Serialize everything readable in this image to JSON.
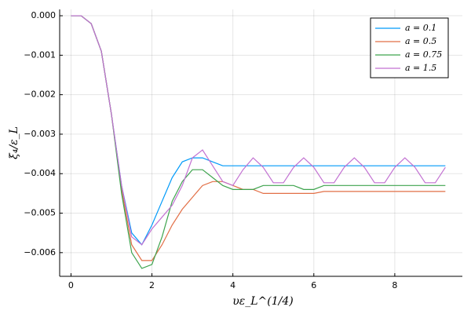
{
  "chart_data": {
    "type": "line",
    "xlabel": "υε_L^(1/4)",
    "ylabel": "ξ₄/ε_L",
    "x": [
      0,
      0.25,
      0.5,
      0.75,
      1,
      1.25,
      1.5,
      1.75,
      2,
      2.25,
      2.5,
      2.75,
      3,
      3.25,
      3.5,
      3.75,
      4,
      4.25,
      4.5,
      4.75,
      5,
      5.25,
      5.5,
      5.75,
      6,
      6.25,
      6.5,
      6.75,
      7,
      7.25,
      7.5,
      7.75,
      8,
      8.25,
      8.5,
      8.75,
      9,
      9.25
    ],
    "series": [
      {
        "name": "a = 0.1",
        "color": "#009af9",
        "values": [
          0,
          0,
          -0.0002,
          -0.0009,
          -0.0025,
          -0.0043,
          -0.0055,
          -0.0058,
          -0.0053,
          -0.0047,
          -0.0041,
          -0.0037,
          -0.0036,
          -0.0036,
          -0.0037,
          -0.0038,
          -0.0038,
          -0.0038,
          -0.0038,
          -0.0038,
          -0.0038,
          -0.0038,
          -0.0038,
          -0.0038,
          -0.0038,
          -0.0038,
          -0.0038,
          -0.0038,
          -0.0038,
          -0.0038,
          -0.0038,
          -0.0038,
          -0.0038,
          -0.0038,
          -0.0038,
          -0.0038,
          -0.0038,
          -0.0038
        ]
      },
      {
        "name": "a = 0.5",
        "color": "#e26f46",
        "values": [
          0,
          0,
          -0.0002,
          -0.0009,
          -0.0025,
          -0.0044,
          -0.0058,
          -0.0062,
          -0.0062,
          -0.0058,
          -0.0053,
          -0.0049,
          -0.0046,
          -0.0043,
          -0.0042,
          -0.0042,
          -0.0043,
          -0.0044,
          -0.0044,
          -0.0045,
          -0.0045,
          -0.0045,
          -0.0045,
          -0.0045,
          -0.0045,
          -0.00445,
          -0.00445,
          -0.00445,
          -0.00445,
          -0.00445,
          -0.00445,
          -0.00445,
          -0.00445,
          -0.00445,
          -0.00445,
          -0.00445,
          -0.00445,
          -0.00445
        ]
      },
      {
        "name": "a = 0.75",
        "color": "#3ea44e",
        "values": [
          0,
          0,
          -0.0002,
          -0.0009,
          -0.0025,
          -0.0045,
          -0.006,
          -0.0064,
          -0.0063,
          -0.0056,
          -0.0047,
          -0.0042,
          -0.0039,
          -0.0039,
          -0.0041,
          -0.0043,
          -0.0044,
          -0.0044,
          -0.0044,
          -0.0043,
          -0.0043,
          -0.0043,
          -0.0043,
          -0.0044,
          -0.0044,
          -0.0043,
          -0.0043,
          -0.0043,
          -0.0043,
          -0.0043,
          -0.0043,
          -0.0043,
          -0.0043,
          -0.0043,
          -0.0043,
          -0.0043,
          -0.0043,
          -0.0043
        ]
      },
      {
        "name": "a = 1.5",
        "color": "#c271d2",
        "values": [
          0,
          0,
          -0.0002,
          -0.0009,
          -0.0025,
          -0.0043,
          -0.0056,
          -0.0058,
          -0.0054,
          -0.0051,
          -0.0048,
          -0.0043,
          -0.0036,
          -0.0034,
          -0.0038,
          -0.0042,
          -0.0043,
          -0.0039,
          -0.0036,
          -0.00384,
          -0.00423,
          -0.00423,
          -0.00384,
          -0.0036,
          -0.00384,
          -0.00423,
          -0.00423,
          -0.00384,
          -0.0036,
          -0.00384,
          -0.00423,
          -0.00423,
          -0.00384,
          -0.0036,
          -0.00384,
          -0.00423,
          -0.00423,
          -0.00384
        ]
      }
    ],
    "xlim": [
      -0.28,
      9.67
    ],
    "xticks": [
      0,
      2,
      4,
      6,
      8
    ],
    "ylim": [
      -0.0066,
      0.00016
    ],
    "yticks": [
      {
        "value": 0,
        "label": "0.000"
      },
      {
        "value": -0.001,
        "label": "−0.001"
      },
      {
        "value": -0.002,
        "label": "−0.002"
      },
      {
        "value": -0.003,
        "label": "−0.003"
      },
      {
        "value": -0.004,
        "label": "−0.004"
      },
      {
        "value": -0.005,
        "label": "−0.005"
      },
      {
        "value": -0.006,
        "label": "−0.006"
      }
    ],
    "grid": true,
    "legend": "top-right"
  }
}
